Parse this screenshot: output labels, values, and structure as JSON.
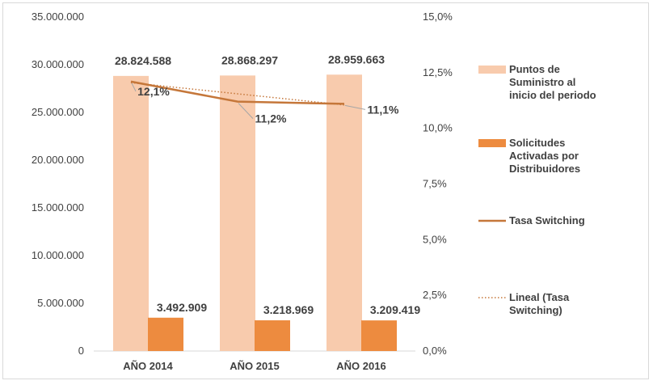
{
  "chart_data": {
    "type": "bar",
    "categories": [
      "AÑO 2014",
      "AÑO 2015",
      "AÑO 2016"
    ],
    "y_left": {
      "range": [
        0,
        35000000
      ],
      "ticks": [
        0,
        5000000,
        10000000,
        15000000,
        20000000,
        25000000,
        30000000,
        35000000
      ],
      "tick_labels": [
        "0",
        "5.000.000",
        "10.000.000",
        "15.000.000",
        "20.000.000",
        "25.000.000",
        "30.000.000",
        "35.000.000"
      ]
    },
    "y_right": {
      "range": [
        0,
        15
      ],
      "ticks": [
        0,
        2.5,
        5,
        7.5,
        10,
        12.5,
        15
      ],
      "tick_labels": [
        "0,0%",
        "2,5%",
        "5,0%",
        "7,5%",
        "10,0%",
        "12,5%",
        "15,0%"
      ]
    },
    "series": [
      {
        "name": "Puntos de Suministro al inicio del periodo",
        "kind": "bar",
        "axis": "left",
        "color": "#f8cbad",
        "values": [
          28824588,
          28868297,
          28959663
        ],
        "labels": [
          "28.824.588",
          "28.868.297",
          "28.959.663"
        ]
      },
      {
        "name": "Solicitudes Activadas por Distribuidores",
        "kind": "bar",
        "axis": "left",
        "color": "#ed8b3f",
        "values": [
          3492909,
          3218969,
          3209419
        ],
        "labels": [
          "3.492.909",
          "3.218.969",
          "3.209.419"
        ]
      },
      {
        "name": "Tasa Switching",
        "kind": "line",
        "axis": "right",
        "color": "#c5773a",
        "values": [
          12.1,
          11.2,
          11.1
        ],
        "labels": [
          "12,1%",
          "11,2%",
          "11,1%"
        ]
      },
      {
        "name": "Lineal (Tasa Switching)",
        "kind": "trendline",
        "axis": "right",
        "color": "#c5773a",
        "values": [
          12.05,
          11.55,
          11.05
        ]
      }
    ],
    "legend": {
      "position": "right",
      "entries": [
        {
          "lines": [
            "Puntos de",
            "Suministro al",
            "inicio del periodo"
          ],
          "swatch": "rect",
          "color": "#f8cbad"
        },
        {
          "lines": [
            "Solicitudes",
            "Activadas por",
            "Distribuidores"
          ],
          "swatch": "rect",
          "color": "#ed8b3f"
        },
        {
          "lines": [
            "Tasa Switching"
          ],
          "swatch": "line",
          "color": "#c5773a"
        },
        {
          "lines": [
            "Lineal (Tasa",
            "Switching)"
          ],
          "swatch": "dotted",
          "color": "#c5773a"
        }
      ]
    },
    "grid": false
  }
}
